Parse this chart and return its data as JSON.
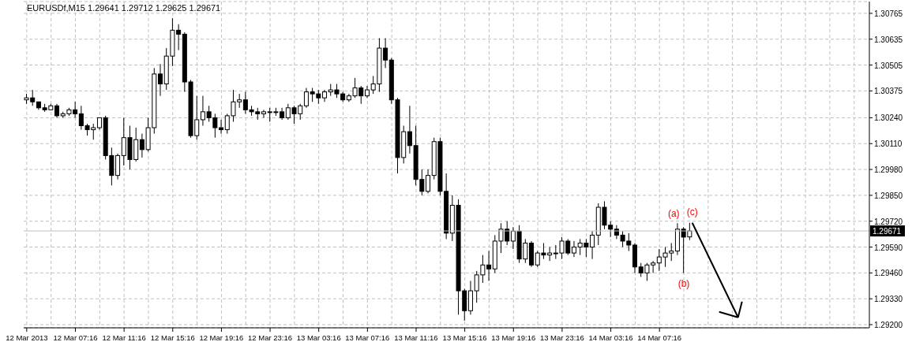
{
  "chart_data": {
    "type": "candlestick",
    "title": "EURUSDf,M15 1.29641 1.29712 1.29625 1.29671",
    "color": "#000000",
    "categories": [
      "12 Mar 2013",
      null,
      null,
      null,
      null,
      null,
      null,
      null,
      "12 Mar 07:16",
      null,
      null,
      null,
      null,
      null,
      null,
      null,
      "12 Mar 11:16",
      null,
      null,
      null,
      null,
      null,
      null,
      null,
      "12 Mar 15:16",
      null,
      null,
      null,
      null,
      null,
      null,
      null,
      "12 Mar 19:16",
      null,
      null,
      null,
      null,
      null,
      null,
      null,
      "12 Mar 23:16",
      null,
      null,
      null,
      null,
      null,
      null,
      null,
      "13 Mar 03:16",
      null,
      null,
      null,
      null,
      null,
      null,
      null,
      "13 Mar 07:16",
      null,
      null,
      null,
      null,
      null,
      null,
      null,
      "13 Mar 11:16",
      null,
      null,
      null,
      null,
      null,
      null,
      null,
      "13 Mar 15:16",
      null,
      null,
      null,
      null,
      null,
      null,
      null,
      "13 Mar 19:16",
      null,
      null,
      null,
      null,
      null,
      null,
      null,
      "13 Mar 23:16",
      null,
      null,
      null,
      null,
      null,
      null,
      null,
      "14 Mar 03:16",
      null,
      null,
      null,
      null,
      null,
      null,
      null,
      "14 Mar 07:16",
      null,
      null,
      null,
      null,
      null,
      null,
      null,
      null,
      null,
      null,
      null,
      null,
      null,
      null,
      null,
      null,
      null,
      null,
      null,
      null,
      null,
      null,
      null,
      null,
      null,
      null,
      null,
      null,
      null,
      null,
      null,
      null,
      null,
      null
    ],
    "ohlc": [
      [
        1.3033,
        1.3036,
        1.3031,
        1.3034
      ],
      [
        1.3034,
        1.3038,
        1.303,
        1.3032
      ],
      [
        1.3032,
        1.3032,
        1.3028,
        1.3029
      ],
      [
        1.3029,
        1.3031,
        1.3027,
        1.3028
      ],
      [
        1.3028,
        1.3031,
        1.3028,
        1.303
      ],
      [
        1.303,
        1.3031,
        1.3024,
        1.3025
      ],
      [
        1.3025,
        1.3027,
        1.3024,
        1.3026
      ],
      [
        1.3026,
        1.3029,
        1.3025,
        1.3028
      ],
      [
        1.3028,
        1.3032,
        1.3024,
        1.3026
      ],
      [
        1.3026,
        1.303,
        1.3018,
        1.302
      ],
      [
        1.302,
        1.3021,
        1.3015,
        1.3018
      ],
      [
        1.3018,
        1.3021,
        1.3013,
        1.3019
      ],
      [
        1.3019,
        1.3024,
        1.3018,
        1.3024
      ],
      [
        1.3024,
        1.3025,
        1.3003,
        1.3005
      ],
      [
        1.3005,
        1.3009,
        1.299,
        1.2995
      ],
      [
        1.2995,
        1.3006,
        1.2993,
        1.3005
      ],
      [
        1.3005,
        1.3024,
        1.3,
        1.3014
      ],
      [
        1.3014,
        1.302,
        1.2998,
        1.3003
      ],
      [
        1.3003,
        1.3019,
        1.3002,
        1.3013
      ],
      [
        1.3013,
        1.3016,
        1.3004,
        1.3008
      ],
      [
        1.3008,
        1.3024,
        1.3007,
        1.3019
      ],
      [
        1.3019,
        1.3049,
        1.3016,
        1.3046
      ],
      [
        1.3046,
        1.3051,
        1.3035,
        1.3041
      ],
      [
        1.3041,
        1.3059,
        1.3038,
        1.3055
      ],
      [
        1.3055,
        1.3074,
        1.305,
        1.3068
      ],
      [
        1.3068,
        1.3071,
        1.3058,
        1.3066
      ],
      [
        1.3066,
        1.3067,
        1.3037,
        1.3042
      ],
      [
        1.3042,
        1.3043,
        1.3014,
        1.3015
      ],
      [
        1.3015,
        1.3035,
        1.3013,
        1.3023
      ],
      [
        1.3023,
        1.3035,
        1.302,
        1.3027
      ],
      [
        1.3027,
        1.303,
        1.3022,
        1.3024
      ],
      [
        1.3024,
        1.3026,
        1.3014,
        1.3019
      ],
      [
        1.3019,
        1.3023,
        1.3016,
        1.3018
      ],
      [
        1.3018,
        1.3026,
        1.3016,
        1.3025
      ],
      [
        1.3025,
        1.3038,
        1.3022,
        1.3032
      ],
      [
        1.3032,
        1.3036,
        1.3029,
        1.3033
      ],
      [
        1.3033,
        1.3037,
        1.3026,
        1.3028
      ],
      [
        1.3028,
        1.303,
        1.3025,
        1.3027
      ],
      [
        1.3027,
        1.3029,
        1.3023,
        1.3026
      ],
      [
        1.3026,
        1.3028,
        1.3024,
        1.3027
      ],
      [
        1.3027,
        1.3029,
        1.3022,
        1.3027
      ],
      [
        1.3027,
        1.3029,
        1.3025,
        1.3027
      ],
      [
        1.3027,
        1.3029,
        1.3023,
        1.3024
      ],
      [
        1.3024,
        1.3031,
        1.3023,
        1.3029
      ],
      [
        1.3029,
        1.303,
        1.3021,
        1.3026
      ],
      [
        1.3026,
        1.3031,
        1.3023,
        1.303
      ],
      [
        1.303,
        1.3039,
        1.3029,
        1.3037
      ],
      [
        1.3037,
        1.3039,
        1.3032,
        1.3036
      ],
      [
        1.3036,
        1.3038,
        1.3031,
        1.3034
      ],
      [
        1.3034,
        1.3038,
        1.3032,
        1.3037
      ],
      [
        1.3037,
        1.3041,
        1.3035,
        1.3038
      ],
      [
        1.3038,
        1.3041,
        1.3034,
        1.3036
      ],
      [
        1.3036,
        1.3037,
        1.3032,
        1.3033
      ],
      [
        1.3033,
        1.3036,
        1.3032,
        1.3035
      ],
      [
        1.3035,
        1.3044,
        1.3034,
        1.3039
      ],
      [
        1.3039,
        1.304,
        1.3031,
        1.3035
      ],
      [
        1.3035,
        1.304,
        1.3034,
        1.3038
      ],
      [
        1.3038,
        1.3045,
        1.3036,
        1.3041
      ],
      [
        1.3041,
        1.3064,
        1.3037,
        1.3059
      ],
      [
        1.3059,
        1.3064,
        1.3049,
        1.3053
      ],
      [
        1.3053,
        1.3054,
        1.3031,
        1.3033
      ],
      [
        1.3033,
        1.3034,
        1.2996,
        1.3004
      ],
      [
        1.3004,
        1.302,
        1.3001,
        1.3017
      ],
      [
        1.3017,
        1.303,
        1.3006,
        1.301
      ],
      [
        1.301,
        1.302,
        1.299,
        1.2993
      ],
      [
        1.2993,
        1.2998,
        1.2985,
        1.2987
      ],
      [
        1.2987,
        1.2998,
        1.2986,
        1.2995
      ],
      [
        1.2995,
        1.3014,
        1.2993,
        1.3012
      ],
      [
        1.3012,
        1.3014,
        1.2985,
        1.2987
      ],
      [
        1.2987,
        1.2996,
        1.2963,
        1.2966
      ],
      [
        1.2966,
        1.2985,
        1.2962,
        1.298
      ],
      [
        1.298,
        1.2983,
        1.2925,
        1.2937
      ],
      [
        1.2937,
        1.2938,
        1.2922,
        1.2927
      ],
      [
        1.2927,
        1.2942,
        1.2925,
        1.2937
      ],
      [
        1.2937,
        1.2947,
        1.2931,
        1.2945
      ],
      [
        1.2945,
        1.2955,
        1.2941,
        1.295
      ],
      [
        1.295,
        1.2957,
        1.2942,
        1.2948
      ],
      [
        1.2948,
        1.2965,
        1.2946,
        1.2962
      ],
      [
        1.2962,
        1.2971,
        1.2956,
        1.2968
      ],
      [
        1.2968,
        1.2972,
        1.296,
        1.2962
      ],
      [
        1.2962,
        1.2969,
        1.2958,
        1.2967
      ],
      [
        1.2967,
        1.297,
        1.2951,
        1.2953
      ],
      [
        1.2953,
        1.2963,
        1.2951,
        1.2961
      ],
      [
        1.2961,
        1.2962,
        1.2949,
        1.295
      ],
      [
        1.295,
        1.2957,
        1.2949,
        1.2956
      ],
      [
        1.2956,
        1.2961,
        1.2953,
        1.2955
      ],
      [
        1.2955,
        1.2959,
        1.2952,
        1.2956
      ],
      [
        1.2956,
        1.296,
        1.2953,
        1.2956
      ],
      [
        1.2956,
        1.2964,
        1.2953,
        1.2962
      ],
      [
        1.2962,
        1.2963,
        1.2955,
        1.2956
      ],
      [
        1.2956,
        1.2962,
        1.2954,
        1.2959
      ],
      [
        1.2959,
        1.2963,
        1.2955,
        1.2961
      ],
      [
        1.2961,
        1.2963,
        1.2954,
        1.2959
      ],
      [
        1.2959,
        1.2967,
        1.2953,
        1.2965
      ],
      [
        1.2965,
        1.2981,
        1.296,
        1.2979
      ],
      [
        1.2979,
        1.2982,
        1.2968,
        1.297
      ],
      [
        1.297,
        1.2972,
        1.2964,
        1.2968
      ],
      [
        1.2968,
        1.297,
        1.2963,
        1.2965
      ],
      [
        1.2965,
        1.2967,
        1.2959,
        1.2962
      ],
      [
        1.2962,
        1.2966,
        1.2957,
        1.296
      ],
      [
        1.296,
        1.2961,
        1.2946,
        1.2949
      ],
      [
        1.2949,
        1.2951,
        1.2944,
        1.2946
      ],
      [
        1.2946,
        1.2951,
        1.2942,
        1.295
      ],
      [
        1.295,
        1.2952,
        1.2946,
        1.2951
      ],
      [
        1.2951,
        1.2958,
        1.2947,
        1.2954
      ],
      [
        1.2954,
        1.2959,
        1.2949,
        1.2956
      ],
      [
        1.2956,
        1.2961,
        1.2952,
        1.2957
      ],
      [
        1.2957,
        1.2971,
        1.2955,
        1.2968
      ],
      [
        1.2968,
        1.2969,
        1.2946,
        1.2964
      ],
      [
        1.29641,
        1.29712,
        1.29625,
        1.29671
      ],
      null,
      null,
      null,
      null,
      null,
      null,
      null,
      null,
      null,
      null,
      null,
      null,
      null,
      null,
      null,
      null,
      null,
      null,
      null,
      null,
      null,
      null,
      null,
      null,
      null,
      null,
      null,
      null,
      null
    ],
    "ylim": [
      1.29184,
      1.30824
    ],
    "yticks": [
      {
        "value": 1.292,
        "label": "1.29200"
      },
      {
        "value": 1.2933,
        "label": "1.29330"
      },
      {
        "value": 1.2946,
        "label": "1.29460"
      },
      {
        "value": 1.2959,
        "label": "1.29590"
      },
      {
        "value": 1.2972,
        "label": "1.29720"
      },
      {
        "value": 1.2985,
        "label": "1.29850"
      },
      {
        "value": 1.2998,
        "label": "1.29980"
      },
      {
        "value": 1.3011,
        "label": "1.30110"
      },
      {
        "value": 1.3024,
        "label": "1.30240"
      },
      1.30375,
      1.30505,
      1.30635,
      1.30765
    ],
    "ref_lines": [
      {
        "axis": "y",
        "value": 1.29671,
        "label": "1.29671",
        "color": "#c0c0c0"
      }
    ],
    "annotations": [
      "(a)",
      "(b)",
      "(c)"
    ],
    "grid": true
  }
}
